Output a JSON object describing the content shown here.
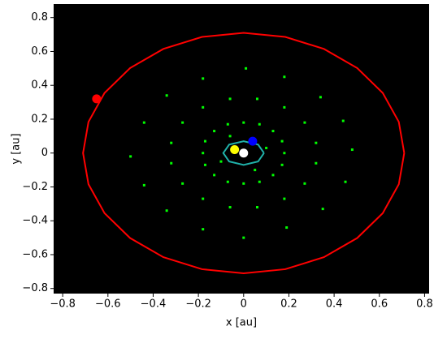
{
  "chart_data": {
    "type": "scatter",
    "xlabel": "x [au]",
    "ylabel": "y [au]",
    "xlim": [
      -0.84,
      0.82
    ],
    "ylim": [
      -0.83,
      0.88
    ],
    "xticks": [
      {
        "value": -0.8,
        "label": "−0.8"
      },
      {
        "value": -0.6,
        "label": "−0.6"
      },
      {
        "value": -0.4,
        "label": "−0.4"
      },
      {
        "value": -0.2,
        "label": "−0.2"
      },
      0,
      0.2,
      0.4,
      0.6,
      0.8
    ],
    "yticks": [
      {
        "value": -0.8,
        "label": "−0.8"
      },
      {
        "value": -0.6,
        "label": "−0.6"
      },
      {
        "value": -0.4,
        "label": "−0.4"
      },
      {
        "value": -0.2,
        "label": "−0.2"
      },
      0,
      0.2,
      0.4,
      0.6,
      0.8
    ],
    "background": "#000000",
    "series": [
      {
        "mode": "points",
        "color": "#00ff00",
        "x": [
          0.18,
          0.17,
          0.13,
          0.07,
          0,
          -0.07,
          -0.13,
          -0.17,
          -0.18,
          -0.17,
          -0.13,
          -0.07,
          0,
          0.07,
          0.13,
          0.17,
          0.32,
          0.27,
          0.18,
          0.06,
          -0.06,
          -0.18,
          -0.27,
          -0.32,
          -0.32,
          -0.27,
          -0.18,
          -0.06,
          0.06,
          0.18,
          0.27,
          0.32,
          0.48,
          0.44,
          0.34,
          0.18,
          0.01,
          -0.18,
          -0.34,
          -0.44,
          -0.5,
          -0.44,
          -0.34,
          -0.18,
          0.0,
          0.19,
          0.35,
          0.45,
          0.1,
          -0.1,
          0.05,
          -0.06
        ],
        "y": [
          0,
          0.07,
          0.13,
          0.17,
          0.18,
          0.17,
          0.13,
          0.07,
          0,
          -0.07,
          -0.13,
          -0.17,
          -0.18,
          -0.17,
          -0.13,
          -0.07,
          0.06,
          0.18,
          0.27,
          0.32,
          0.32,
          0.27,
          0.18,
          0.06,
          -0.06,
          -0.18,
          -0.27,
          -0.32,
          -0.32,
          -0.27,
          -0.18,
          -0.06,
          0.02,
          0.19,
          0.33,
          0.45,
          0.5,
          0.44,
          0.34,
          0.18,
          -0.02,
          -0.19,
          -0.34,
          -0.45,
          -0.5,
          -0.44,
          -0.33,
          -0.17,
          0.03,
          -0.05,
          -0.1,
          0.1
        ]
      },
      {
        "mode": "line",
        "color": "#ff0000",
        "x": [
          0.71,
          0.686,
          0.615,
          0.502,
          0.355,
          0.184,
          0,
          -0.184,
          -0.355,
          -0.502,
          -0.615,
          -0.686,
          -0.71,
          -0.686,
          -0.615,
          -0.502,
          -0.355,
          -0.184,
          0,
          0.184,
          0.355,
          0.502,
          0.615,
          0.686,
          0.71
        ],
        "y": [
          0,
          0.184,
          0.355,
          0.502,
          0.615,
          0.686,
          0.71,
          0.686,
          0.615,
          0.502,
          0.355,
          0.184,
          0,
          -0.184,
          -0.355,
          -0.502,
          -0.615,
          -0.686,
          -0.71,
          -0.686,
          -0.615,
          -0.502,
          -0.355,
          -0.184,
          0
        ]
      },
      {
        "mode": "line",
        "color": "#20b2aa",
        "x": [
          0.09,
          0.064,
          0,
          -0.064,
          -0.09,
          -0.064,
          0,
          0.064,
          0.09
        ],
        "y": [
          0,
          0.05,
          0.07,
          0.05,
          0,
          -0.05,
          -0.07,
          -0.05,
          0
        ]
      },
      {
        "mode": "markers",
        "color": "#ff0000",
        "x": [
          -0.65
        ],
        "y": [
          0.32
        ]
      },
      {
        "mode": "markers",
        "color": "#0000ff",
        "x": [
          0.04
        ],
        "y": [
          0.07
        ]
      },
      {
        "mode": "markers",
        "color": "#ffff00",
        "x": [
          -0.04
        ],
        "y": [
          0.02
        ]
      },
      {
        "mode": "markers",
        "color": "#ffffff",
        "x": [
          0.0
        ],
        "y": [
          0.0
        ]
      }
    ]
  }
}
